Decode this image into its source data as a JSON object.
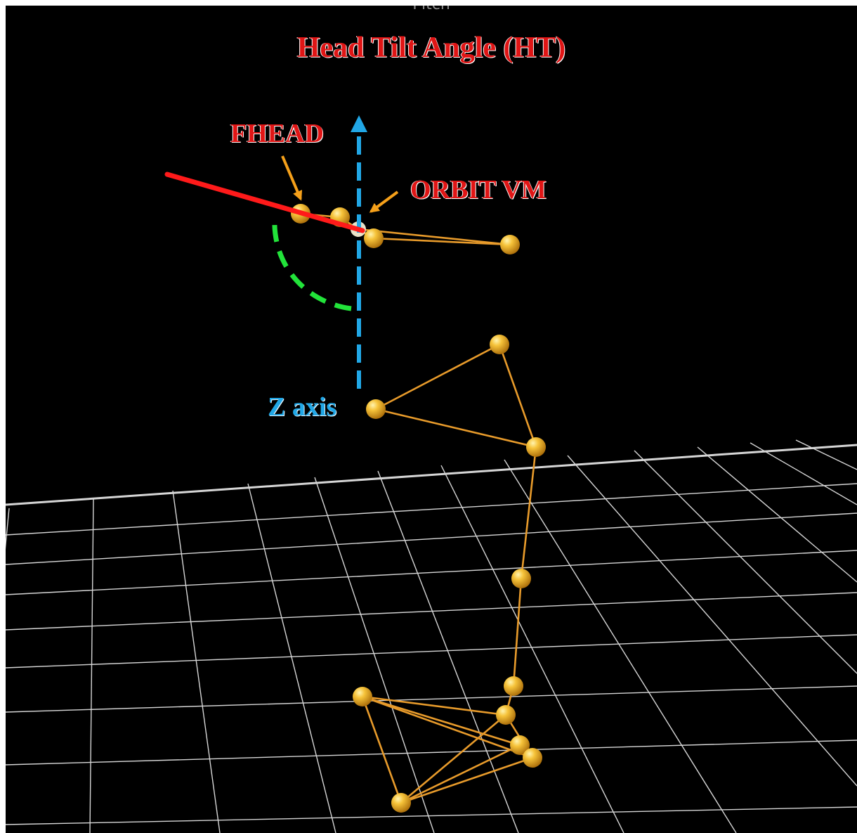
{
  "top_label": "Pitch",
  "title": "Head Tilt Angle (HT)",
  "labels": {
    "fhead": "FHEAD",
    "orbit_vm": "ORBIT VM",
    "z_axis": "Z axis"
  },
  "colors": {
    "background": "#000000",
    "grid": "#d6d6d6",
    "marker": "#f2b321",
    "segment": "#e89b2b",
    "title_text": "#e01515",
    "head_line": "#ff1a1a",
    "z_axis": "#21a7e6",
    "angle_arc": "#22e33a",
    "pointer_arrow": "#f5a01a"
  },
  "icons": {
    "markers": "sphere-marker",
    "pointers": "arrow-icon"
  }
}
